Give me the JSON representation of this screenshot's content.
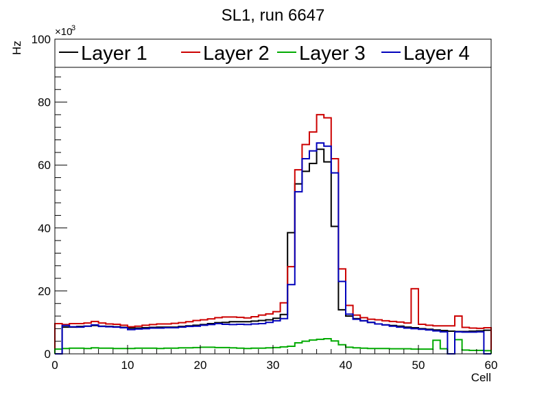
{
  "chart_data": {
    "type": "line",
    "style": "step-histogram",
    "title": "SL1, run 6647",
    "xlabel": "Cell",
    "ylabel": "Hz",
    "y_multiplier": "×10",
    "y_multiplier_exp": "3",
    "xlim": [
      0,
      60
    ],
    "ylim": [
      0,
      100000
    ],
    "x_ticks": [
      0,
      10,
      20,
      30,
      40,
      50,
      60
    ],
    "x_tick_labels": [
      "0",
      "10",
      "20",
      "30",
      "40",
      "50",
      "60"
    ],
    "y_ticks": [
      0,
      20000,
      40000,
      60000,
      80000,
      100000
    ],
    "y_tick_labels": [
      "0",
      "20",
      "40",
      "60",
      "80",
      "100"
    ],
    "grid": false,
    "legend_position": "top",
    "bin_edges_start": 0,
    "bin_width": 1,
    "series": [
      {
        "name": "Layer 1",
        "color": "#000000",
        "values": [
          0,
          8500,
          8500,
          8700,
          8800,
          9000,
          8800,
          8700,
          8600,
          8400,
          8200,
          8200,
          8300,
          8400,
          8500,
          8500,
          8500,
          8700,
          8900,
          9100,
          9300,
          9600,
          9900,
          10000,
          10200,
          10200,
          10200,
          10400,
          10600,
          10800,
          11300,
          12500,
          38500,
          54000,
          58000,
          60500,
          65000,
          61000,
          40500,
          14000,
          12000,
          11200,
          10500,
          10000,
          9500,
          9200,
          9000,
          8800,
          8500,
          8300,
          8000,
          7800,
          7600,
          7400,
          7200,
          7100,
          7100,
          7200,
          7300,
          7500
        ]
      },
      {
        "name": "Layer 2",
        "color": "#cc0000",
        "values": [
          9600,
          9300,
          9600,
          9600,
          9800,
          10300,
          9800,
          9500,
          9400,
          9100,
          8600,
          8800,
          9100,
          9300,
          9500,
          9500,
          9700,
          9900,
          10200,
          10600,
          10800,
          11100,
          11500,
          11700,
          11700,
          11600,
          11400,
          11800,
          12300,
          12700,
          13400,
          16200,
          27700,
          58500,
          66500,
          70500,
          76000,
          75000,
          62000,
          27000,
          15400,
          12300,
          11500,
          11000,
          10800,
          10500,
          10300,
          10100,
          9800,
          20700,
          9400,
          9100,
          8900,
          8900,
          8900,
          12000,
          8400,
          8200,
          8100,
          8300
        ]
      },
      {
        "name": "Layer 3",
        "color": "#00aa00",
        "values": [
          1500,
          1700,
          1800,
          1800,
          1700,
          1900,
          1800,
          1800,
          1700,
          1700,
          1700,
          1800,
          1800,
          1800,
          1700,
          1800,
          1800,
          1900,
          1900,
          2000,
          2100,
          2100,
          2000,
          2000,
          1900,
          1800,
          1700,
          1800,
          1800,
          1900,
          2000,
          2200,
          2400,
          3500,
          4000,
          4400,
          4600,
          4800,
          4100,
          2900,
          2100,
          1900,
          1800,
          1700,
          1700,
          1700,
          1600,
          1600,
          1600,
          1500,
          1500,
          1500,
          4300,
          1600,
          0,
          4500,
          1200,
          1100,
          1100,
          1000
        ]
      },
      {
        "name": "Layer 4",
        "color": "#0000bb",
        "values": [
          0,
          9000,
          8600,
          8500,
          8800,
          9200,
          8700,
          8600,
          8500,
          8300,
          7700,
          7900,
          8000,
          8200,
          8200,
          8300,
          8300,
          8500,
          8700,
          8800,
          9100,
          9300,
          9600,
          9400,
          9300,
          9400,
          9300,
          9500,
          9600,
          10000,
          10500,
          11200,
          22000,
          51500,
          62000,
          64500,
          67000,
          66000,
          57500,
          23000,
          12600,
          11000,
          10500,
          10000,
          9500,
          9200,
          8800,
          8500,
          8200,
          8000,
          7800,
          7600,
          7300,
          7000,
          0,
          7000,
          6900,
          6900,
          7000,
          0
        ]
      }
    ]
  }
}
